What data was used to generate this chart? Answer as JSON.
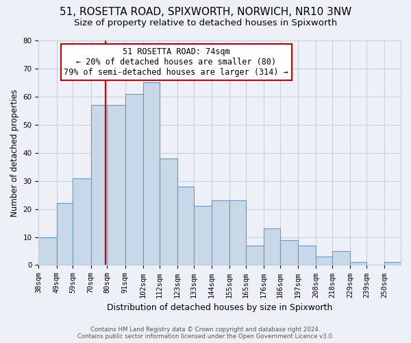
{
  "title": "51, ROSETTA ROAD, SPIXWORTH, NORWICH, NR10 3NW",
  "subtitle": "Size of property relative to detached houses in Spixworth",
  "xlabel": "Distribution of detached houses by size in Spixworth",
  "ylabel": "Number of detached properties",
  "footer_line1": "Contains HM Land Registry data © Crown copyright and database right 2024.",
  "footer_line2": "Contains public sector information licensed under the Open Government Licence v3.0.",
  "bin_labels": [
    "38sqm",
    "49sqm",
    "59sqm",
    "70sqm",
    "80sqm",
    "91sqm",
    "102sqm",
    "112sqm",
    "123sqm",
    "133sqm",
    "144sqm",
    "155sqm",
    "165sqm",
    "176sqm",
    "186sqm",
    "197sqm",
    "208sqm",
    "218sqm",
    "229sqm",
    "239sqm",
    "250sqm"
  ],
  "bar_values": [
    10,
    22,
    31,
    57,
    57,
    61,
    65,
    38,
    28,
    21,
    23,
    23,
    7,
    13,
    9,
    7,
    3,
    5,
    1,
    0,
    1
  ],
  "bar_color": "#c8d8e8",
  "bar_edgecolor": "#6699bb",
  "bar_linewidth": 0.8,
  "vline_x": 74,
  "vline_color": "#cc0000",
  "vline_linewidth": 1.5,
  "annotation_text": "51 ROSETTA ROAD: 74sqm\n← 20% of detached houses are smaller (80)\n79% of semi-detached houses are larger (314) →",
  "annotation_box_edgecolor": "#cc0000",
  "annotation_box_facecolor": "#ffffff",
  "annotation_fontsize": 8.5,
  "ylim": [
    0,
    80
  ],
  "yticks": [
    0,
    10,
    20,
    30,
    40,
    50,
    60,
    70,
    80
  ],
  "background_color": "#edf1f7",
  "grid_color": "#c8d0dc",
  "title_fontsize": 11,
  "subtitle_fontsize": 9.5,
  "xlabel_fontsize": 9,
  "ylabel_fontsize": 8.5,
  "tick_fontsize": 7.5,
  "bin_edges": [
    33,
    44,
    54,
    65,
    75,
    86,
    97,
    107,
    118,
    128,
    139,
    150,
    160,
    171,
    181,
    192,
    203,
    213,
    224,
    234,
    245,
    255
  ]
}
